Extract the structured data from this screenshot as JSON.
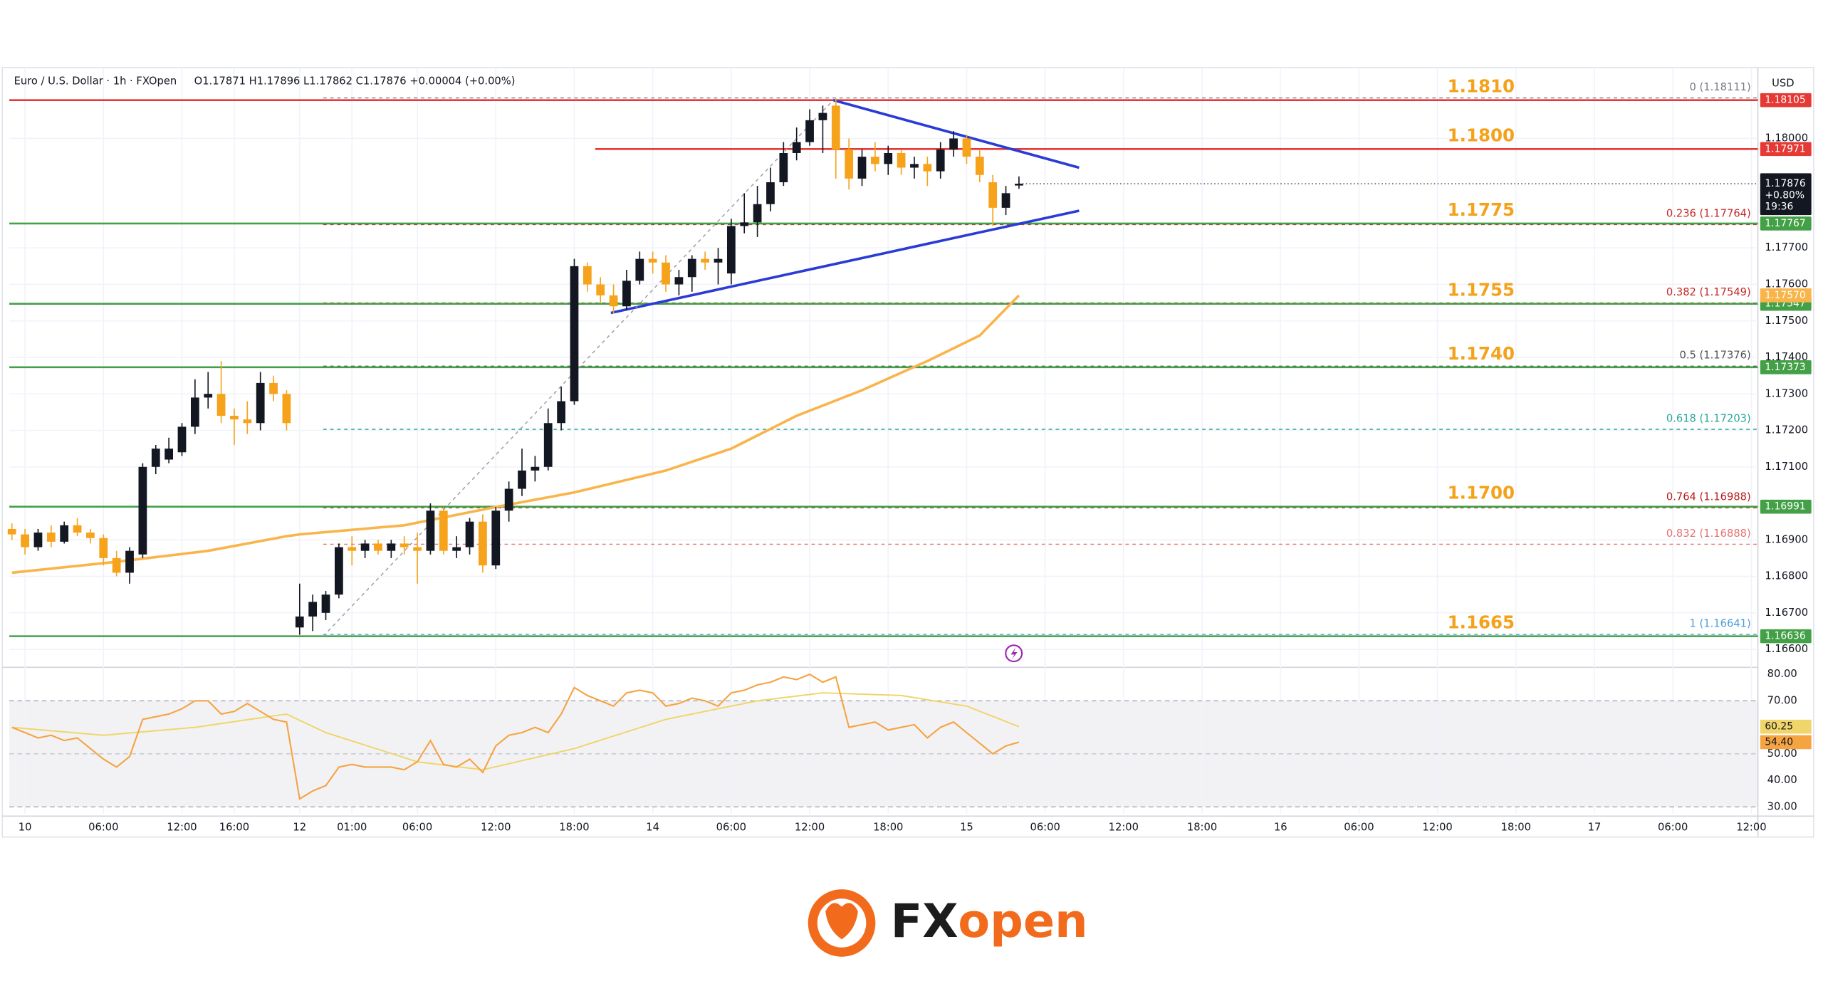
{
  "chart_data": {
    "type": "candlestick",
    "title": "Euro / U.S. Dollar · 1h · FXOpen",
    "subtitle": "O1.17871 H1.17896 L1.17862 C1.17876 +0.00004 (+0.00%)",
    "y_axis_label": "USD",
    "up_color": "#131722",
    "down_color": "#f7a21b",
    "grid": true,
    "x": [
      0,
      1,
      2,
      3,
      4,
      5,
      6,
      7,
      8,
      9,
      10,
      11,
      12,
      13,
      14,
      15,
      16,
      17,
      18,
      19,
      20,
      21,
      22,
      23,
      24,
      25,
      26,
      27,
      28,
      29,
      30,
      31,
      32,
      33,
      34,
      35,
      36,
      37,
      38,
      39,
      40,
      41,
      42,
      43,
      44,
      45,
      46,
      47,
      48,
      49,
      50,
      51,
      52,
      53,
      54,
      55,
      56,
      57,
      58,
      59,
      60,
      61,
      62,
      63,
      64,
      65,
      66,
      67,
      68,
      69,
      70,
      71,
      72,
      73,
      74,
      75,
      76,
      77
    ],
    "open": [
      1.1693,
      1.16915,
      1.1688,
      1.1692,
      1.16895,
      1.1694,
      1.1692,
      1.16905,
      1.1685,
      1.1681,
      1.1686,
      1.171,
      1.1712,
      1.1714,
      1.1721,
      1.1729,
      1.173,
      1.1724,
      1.1723,
      1.1722,
      1.1733,
      1.173,
      1.1666,
      1.1669,
      1.167,
      1.1675,
      1.1688,
      1.1687,
      1.1689,
      1.1687,
      1.1689,
      1.1688,
      1.1687,
      1.1698,
      1.1687,
      1.1688,
      1.1695,
      1.1683,
      1.1698,
      1.1704,
      1.1709,
      1.171,
      1.1722,
      1.1728,
      1.1765,
      1.176,
      1.1757,
      1.1754,
      1.1761,
      1.1767,
      1.1766,
      1.176,
      1.1762,
      1.1767,
      1.1766,
      1.1763,
      1.1776,
      1.1777,
      1.1782,
      1.1788,
      1.1796,
      1.1799,
      1.1805,
      1.1809,
      1.1797,
      1.1789,
      1.1795,
      1.1793,
      1.1796,
      1.1792,
      1.1793,
      1.1791,
      1.1797,
      1.18,
      1.1795,
      1.1788,
      1.1781,
      1.17871
    ],
    "high": [
      1.16945,
      1.1693,
      1.1693,
      1.1694,
      1.1695,
      1.1696,
      1.1693,
      1.16915,
      1.1687,
      1.1688,
      1.1711,
      1.1716,
      1.1718,
      1.1722,
      1.1734,
      1.1736,
      1.1739,
      1.1726,
      1.1728,
      1.1736,
      1.1735,
      1.1731,
      1.1678,
      1.1675,
      1.1676,
      1.1689,
      1.1691,
      1.169,
      1.169,
      1.169,
      1.1691,
      1.1692,
      1.17,
      1.1699,
      1.1691,
      1.1696,
      1.1697,
      1.1699,
      1.1706,
      1.1715,
      1.1713,
      1.1726,
      1.1732,
      1.1767,
      1.1766,
      1.1762,
      1.176,
      1.1764,
      1.1769,
      1.1769,
      1.1768,
      1.1764,
      1.1768,
      1.1769,
      1.177,
      1.1778,
      1.1785,
      1.1787,
      1.1792,
      1.1799,
      1.1803,
      1.1808,
      1.1809,
      1.1811,
      1.18,
      1.1797,
      1.1799,
      1.1798,
      1.1797,
      1.1795,
      1.1795,
      1.1799,
      1.1802,
      1.1801,
      1.1797,
      1.179,
      1.1787,
      1.17896
    ],
    "low": [
      1.169,
      1.1686,
      1.1687,
      1.1688,
      1.1689,
      1.1691,
      1.1689,
      1.1683,
      1.168,
      1.1678,
      1.1685,
      1.1708,
      1.1711,
      1.1713,
      1.1719,
      1.1726,
      1.1722,
      1.1716,
      1.1719,
      1.172,
      1.1728,
      1.172,
      1.1664,
      1.1665,
      1.1668,
      1.1674,
      1.1683,
      1.1685,
      1.1686,
      1.1685,
      1.1686,
      1.1678,
      1.1686,
      1.1686,
      1.1685,
      1.1686,
      1.1681,
      1.1682,
      1.1695,
      1.1702,
      1.1706,
      1.1709,
      1.172,
      1.1727,
      1.1758,
      1.1755,
      1.1752,
      1.1753,
      1.176,
      1.1763,
      1.1758,
      1.1757,
      1.1758,
      1.1764,
      1.176,
      1.176,
      1.1774,
      1.1773,
      1.178,
      1.1787,
      1.1794,
      1.1798,
      1.1796,
      1.1789,
      1.1786,
      1.1787,
      1.1791,
      1.179,
      1.179,
      1.1789,
      1.1787,
      1.1789,
      1.1795,
      1.1793,
      1.1788,
      1.1776,
      1.1779,
      1.17862
    ],
    "close": [
      1.16915,
      1.1688,
      1.1692,
      1.16895,
      1.1694,
      1.1692,
      1.16905,
      1.1685,
      1.1681,
      1.1687,
      1.171,
      1.1715,
      1.1715,
      1.1721,
      1.1729,
      1.173,
      1.1724,
      1.1723,
      1.1722,
      1.1733,
      1.173,
      1.1722,
      1.1669,
      1.1673,
      1.1675,
      1.1688,
      1.1687,
      1.1689,
      1.1687,
      1.1689,
      1.1688,
      1.1687,
      1.1698,
      1.1687,
      1.1688,
      1.1695,
      1.1683,
      1.1698,
      1.1704,
      1.1709,
      1.171,
      1.1722,
      1.1728,
      1.1765,
      1.176,
      1.1757,
      1.1754,
      1.1761,
      1.1767,
      1.1766,
      1.176,
      1.1762,
      1.1767,
      1.1766,
      1.1767,
      1.1776,
      1.1777,
      1.1782,
      1.1788,
      1.1796,
      1.1799,
      1.1805,
      1.1807,
      1.1797,
      1.1789,
      1.1795,
      1.1793,
      1.1796,
      1.1792,
      1.1793,
      1.1791,
      1.1797,
      1.18,
      1.1795,
      1.179,
      1.1781,
      1.1785,
      1.17876
    ],
    "xlim": [
      -0.2,
      133.5
    ],
    "xticks": [
      {
        "value": 1,
        "label": "10"
      },
      {
        "value": 7,
        "label": "06:00"
      },
      {
        "value": 13,
        "label": "12:00"
      },
      {
        "value": 17,
        "label": "16:00"
      },
      {
        "value": 22,
        "label": "12"
      },
      {
        "value": 26,
        "label": "01:00"
      },
      {
        "value": 31,
        "label": "06:00"
      },
      {
        "value": 37,
        "label": "12:00"
      },
      {
        "value": 43,
        "label": "18:00"
      },
      {
        "value": 49,
        "label": "14"
      },
      {
        "value": 55,
        "label": "06:00"
      },
      {
        "value": 61,
        "label": "12:00"
      },
      {
        "value": 67,
        "label": "18:00"
      },
      {
        "value": 73,
        "label": "15"
      },
      {
        "value": 79,
        "label": "06:00"
      },
      {
        "value": 85,
        "label": "12:00"
      },
      {
        "value": 91,
        "label": "18:00"
      },
      {
        "value": 97,
        "label": "16"
      },
      {
        "value": 103,
        "label": "06:00"
      },
      {
        "value": 109,
        "label": "12:00"
      },
      {
        "value": 115,
        "label": "18:00"
      },
      {
        "value": 121,
        "label": "17"
      },
      {
        "value": 127,
        "label": "06:00"
      },
      {
        "value": 133,
        "label": "12:00"
      }
    ],
    "ylim": [
      1.16554,
      1.18188
    ],
    "yticks": [
      {
        "value": 1.18,
        "label": "1.18000"
      },
      {
        "value": 1.177,
        "label": "1.17700"
      },
      {
        "value": 1.176,
        "label": "1.17600"
      },
      {
        "value": 1.175,
        "label": "1.17500"
      },
      {
        "value": 1.174,
        "label": "1.17400"
      },
      {
        "value": 1.173,
        "label": "1.17300"
      },
      {
        "value": 1.172,
        "label": "1.17200"
      },
      {
        "value": 1.171,
        "label": "1.17100"
      },
      {
        "value": 1.169,
        "label": "1.16900"
      },
      {
        "value": 1.168,
        "label": "1.16800"
      },
      {
        "value": 1.167,
        "label": "1.16700"
      },
      {
        "value": 1.166,
        "label": "1.16600"
      }
    ],
    "moving_average": {
      "color": "#f9b44a",
      "x": [
        0,
        8,
        15,
        21,
        22,
        30,
        37,
        43,
        50,
        55,
        60,
        65,
        70,
        74,
        77
      ],
      "values": [
        1.1681,
        1.1684,
        1.1687,
        1.1691,
        1.16915,
        1.1694,
        1.1699,
        1.1703,
        1.1709,
        1.1715,
        1.1724,
        1.1731,
        1.1739,
        1.1746,
        1.1757
      ],
      "value_label": "1.17570"
    },
    "levels": [
      {
        "label": "1.1810",
        "value": 1.18105,
        "color": "#e53935"
      },
      {
        "label": "1.1800",
        "value": 1.17971,
        "color": "#e53935",
        "x_start": 44.6
      },
      {
        "label": "1.1775",
        "value": 1.17767,
        "color": "#43a047"
      },
      {
        "label": "1.1755",
        "value": 1.17547,
        "color": "#43a047"
      },
      {
        "label": "1.1740",
        "value": 1.17373,
        "color": "#43a047"
      },
      {
        "label": "1.1700",
        "value": 1.16991,
        "color": "#43a047"
      },
      {
        "label": "1.1665",
        "value": 1.16636,
        "color": "#43a047"
      }
    ],
    "fib_x_start": 23.8,
    "fib": [
      {
        "label": "0 (1.18111)",
        "value": 1.18111,
        "color": "#787b86"
      },
      {
        "label": "0.236 (1.17764)",
        "value": 1.17764,
        "color": "#c62828"
      },
      {
        "label": "0.382 (1.17549)",
        "value": 1.17549,
        "color": "#c62828"
      },
      {
        "label": "0.5 (1.17376)",
        "value": 1.17376,
        "color": "#555555"
      },
      {
        "label": "0.618 (1.17203)",
        "value": 1.17203,
        "color": "#26a69a"
      },
      {
        "label": "0.764 (1.16988)",
        "value": 1.16988,
        "color": "#b71c1c"
      },
      {
        "label": "0.832 (1.16888)",
        "value": 1.16888,
        "color": "#e57373"
      },
      {
        "label": "1 (1.16641)",
        "value": 1.16641,
        "color": "#4a9fd8"
      }
    ],
    "trendlines": [
      {
        "color": "#2a3bd6",
        "x": [
          62.8,
          81.6
        ],
        "values": [
          1.18105,
          1.1792
        ]
      },
      {
        "color": "#2a3bd6",
        "x": [
          45.8,
          81.6
        ],
        "values": [
          1.17522,
          1.17802
        ]
      },
      {
        "color": "#9e9e9e",
        "x": [
          23.8,
          62.8
        ],
        "values": [
          1.16636,
          1.18105
        ]
      }
    ],
    "last_change": "+0.80%",
    "countdown": "19:36",
    "rsi": {
      "color": "#f5a442",
      "ylim": [
        27.4,
        82.2
      ],
      "yticks": [
        {
          "value": 80,
          "label": "80.00"
        },
        {
          "value": 70,
          "label": "70.00"
        },
        {
          "value": 50,
          "label": "50.00"
        },
        {
          "value": 40,
          "label": "40.00"
        },
        {
          "value": 30,
          "label": "30.00"
        }
      ],
      "band": [
        30,
        70
      ],
      "values": [
        60,
        58,
        56,
        57,
        55,
        56,
        52,
        48,
        45,
        49,
        63,
        64,
        65,
        67,
        70,
        70,
        65,
        66,
        69,
        66,
        63,
        62,
        33,
        36,
        38,
        45,
        46,
        45,
        45,
        45,
        44,
        47,
        55,
        46,
        45,
        48,
        43,
        53,
        57,
        58,
        60,
        58,
        65,
        75,
        72,
        70,
        68,
        73,
        74,
        73,
        68,
        69,
        71,
        70,
        68,
        73,
        74,
        76,
        77,
        79,
        78,
        80,
        77,
        79,
        60,
        61,
        62,
        59,
        60,
        61,
        56,
        60,
        62,
        58,
        54,
        50,
        53,
        54.4
      ],
      "value_label": "54.40",
      "ma": {
        "color": "#f0d56a",
        "x": [
          0,
          7,
          14,
          21,
          24,
          31,
          36,
          43,
          50,
          57,
          62,
          68,
          73,
          77
        ],
        "values": [
          60,
          57,
          60,
          65,
          58,
          47,
          44,
          52,
          63,
          70,
          73,
          72,
          68,
          60.25
        ]
      }
    }
  },
  "logo": {
    "left": "FX",
    "right": "open"
  }
}
